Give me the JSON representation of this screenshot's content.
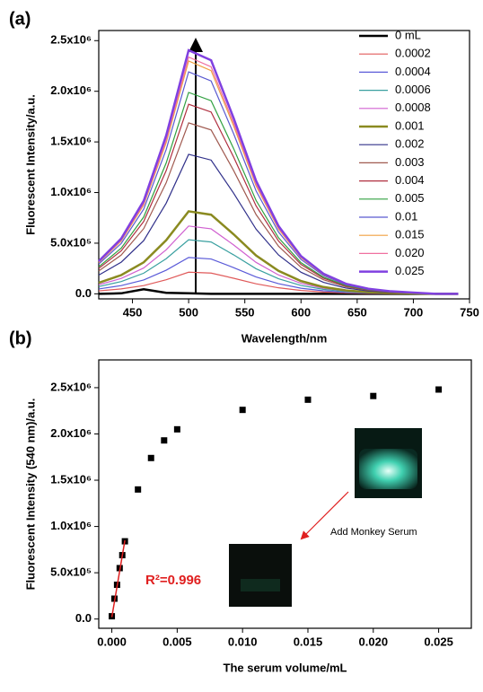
{
  "chart_data": [
    {
      "type": "line",
      "panel": "(a)",
      "x_label": "Wavelength/nm",
      "y_label": "Fluorescent Intensity/a.u.",
      "xlim": [
        420,
        750
      ],
      "xticks": [
        450,
        500,
        550,
        600,
        650,
        700,
        750
      ],
      "ylim": [
        -50000,
        2600000
      ],
      "yticks": [
        {
          "value": 0,
          "label": "0.0"
        },
        {
          "value": 500000,
          "label": "5.0x10⁵"
        },
        {
          "value": 1000000,
          "label": "1.0x10⁶"
        },
        {
          "value": 1500000,
          "label": "1.5x10⁶"
        },
        {
          "value": 2000000,
          "label": "2.0x10⁶"
        },
        {
          "value": 2500000,
          "label": "2.5x10⁶"
        }
      ],
      "x": [
        420,
        440,
        460,
        480,
        500,
        520,
        540,
        560,
        580,
        600,
        620,
        640,
        660,
        680,
        700,
        720,
        740
      ],
      "series": [
        {
          "name": "0 mL",
          "color": "#000000",
          "linewidth": 2.5,
          "values": [
            0,
            5000,
            45000,
            10000,
            5000,
            0,
            0,
            0,
            0,
            0,
            0,
            0,
            0,
            0,
            0,
            0,
            0
          ]
        },
        {
          "name": "0.0002",
          "color": "#e05a5a",
          "linewidth": 1.2,
          "values": [
            28600,
            48400,
            81400,
            138600,
            213400,
            204600,
            154000,
            99000,
            59400,
            33000,
            17600,
            8800,
            4400,
            2200,
            1100,
            0,
            0
          ]
        },
        {
          "name": "0.0004",
          "color": "#5a5ad8",
          "linewidth": 1.2,
          "values": [
            48100,
            81400,
            136900,
            233100,
            358900,
            344100,
            259000,
            166500,
            99900,
            55500,
            29600,
            14800,
            7400,
            3700,
            1850,
            0,
            0
          ]
        },
        {
          "name": "0.0006",
          "color": "#3aa0a0",
          "linewidth": 1.2,
          "values": [
            71500,
            121000,
            203500,
            346500,
            533500,
            511500,
            385000,
            247500,
            148500,
            82500,
            44000,
            22000,
            11000,
            5500,
            2750,
            0,
            0
          ]
        },
        {
          "name": "0.0008",
          "color": "#d060d0",
          "linewidth": 1.2,
          "values": [
            89700,
            151800,
            255300,
            434700,
            669300,
            641700,
            483000,
            310500,
            186300,
            103500,
            55200,
            27600,
            13800,
            6900,
            3450,
            0,
            0
          ]
        },
        {
          "name": "0.001",
          "color": "#8a8a20",
          "linewidth": 2.5,
          "values": [
            109200,
            184800,
            310800,
            529200,
            814800,
            781200,
            588000,
            378000,
            226800,
            126000,
            67200,
            33600,
            16800,
            8400,
            4200,
            0,
            0
          ]
        },
        {
          "name": "0.002",
          "color": "#30308a",
          "linewidth": 1.2,
          "values": [
            184600,
            312400,
            525400,
            894600,
            1377400,
            1320600,
            994000,
            639000,
            383400,
            213000,
            113600,
            56800,
            28400,
            14200,
            7100,
            0,
            0
          ]
        },
        {
          "name": "0.003",
          "color": "#a05a50",
          "linewidth": 1.2,
          "values": [
            226200,
            382800,
            643800,
            1096200,
            1687800,
            1618200,
            1218000,
            783000,
            469800,
            261000,
            139200,
            69600,
            34800,
            17400,
            8700,
            0,
            0
          ]
        },
        {
          "name": "0.004",
          "color": "#b03040",
          "linewidth": 1.2,
          "values": [
            250900,
            424600,
            714100,
            1215900,
            1872100,
            1794900,
            1351000,
            868500,
            521100,
            289500,
            154400,
            77200,
            38600,
            19300,
            9650,
            0,
            0
          ]
        },
        {
          "name": "0.005",
          "color": "#30a040",
          "linewidth": 1.2,
          "values": [
            266500,
            451000,
            758500,
            1291500,
            1988500,
            1906500,
            1435000,
            922500,
            553500,
            307500,
            164000,
            82000,
            41000,
            20500,
            10250,
            0,
            0
          ]
        },
        {
          "name": "0.01",
          "color": "#5a5ad0",
          "linewidth": 1.2,
          "values": [
            293800,
            497200,
            836200,
            1423800,
            2192200,
            2101800,
            1582000,
            1017000,
            610200,
            339000,
            180800,
            90400,
            45200,
            22600,
            11300,
            0,
            0
          ]
        },
        {
          "name": "0.015",
          "color": "#f0a040",
          "linewidth": 1.2,
          "values": [
            308100,
            521400,
            876900,
            1493100,
            2298900,
            2204100,
            1659000,
            1066500,
            639900,
            355500,
            189600,
            94800,
            47400,
            23700,
            11850,
            0,
            0
          ]
        },
        {
          "name": "0.020",
          "color": "#f070a0",
          "linewidth": 1.2,
          "values": [
            313300,
            530200,
            891700,
            1518300,
            2337700,
            2241300,
            1687000,
            1084500,
            650700,
            361500,
            192800,
            96400,
            48200,
            24100,
            12050,
            0,
            0
          ]
        },
        {
          "name": "0.025",
          "color": "#8040e0",
          "linewidth": 2.5,
          "values": [
            322400,
            545600,
            917600,
            1562400,
            2405600,
            2306400,
            1736000,
            1116000,
            669600,
            372000,
            198400,
            99200,
            49600,
            24800,
            12400,
            0,
            0
          ]
        }
      ]
    },
    {
      "type": "scatter",
      "panel": "(b)",
      "x_label": "The serum volume/mL",
      "y_label": "Fluorescent Intensity (540 nm)/a.u.",
      "xlim": [
        -0.001,
        0.0275
      ],
      "xticks": [
        {
          "value": 0,
          "label": "0.000"
        },
        0.005,
        {
          "value": 0.01,
          "label": "0.010"
        },
        0.015,
        {
          "value": 0.02,
          "label": "0.020"
        },
        0.025
      ],
      "ylim": [
        -100000,
        2800000
      ],
      "yticks": [
        {
          "value": 0,
          "label": "0.0"
        },
        {
          "value": 500000,
          "label": "5.0x10⁵"
        },
        {
          "value": 1000000,
          "label": "1.0x10⁶"
        },
        {
          "value": 1500000,
          "label": "1.5x10⁶"
        },
        {
          "value": 2000000,
          "label": "2.0x10⁶"
        },
        {
          "value": 2500000,
          "label": "2.5x10⁶"
        }
      ],
      "x": [
        0,
        0.0002,
        0.0004,
        0.0006,
        0.0008,
        0.001,
        0.002,
        0.003,
        0.004,
        0.005,
        0.01,
        0.015,
        0.02,
        0.025
      ],
      "values": [
        30000,
        220000,
        370000,
        550000,
        690000,
        840000,
        1400000,
        1740000,
        1930000,
        2050000,
        2260000,
        2370000,
        2410000,
        2480000
      ],
      "color": "#000000",
      "fit": {
        "x": [
          0,
          0.001
        ],
        "values": [
          20000,
          850000
        ],
        "color": "#e02020"
      },
      "annotations": [
        "R²=0.996",
        "Add Monkey Serum"
      ]
    }
  ]
}
